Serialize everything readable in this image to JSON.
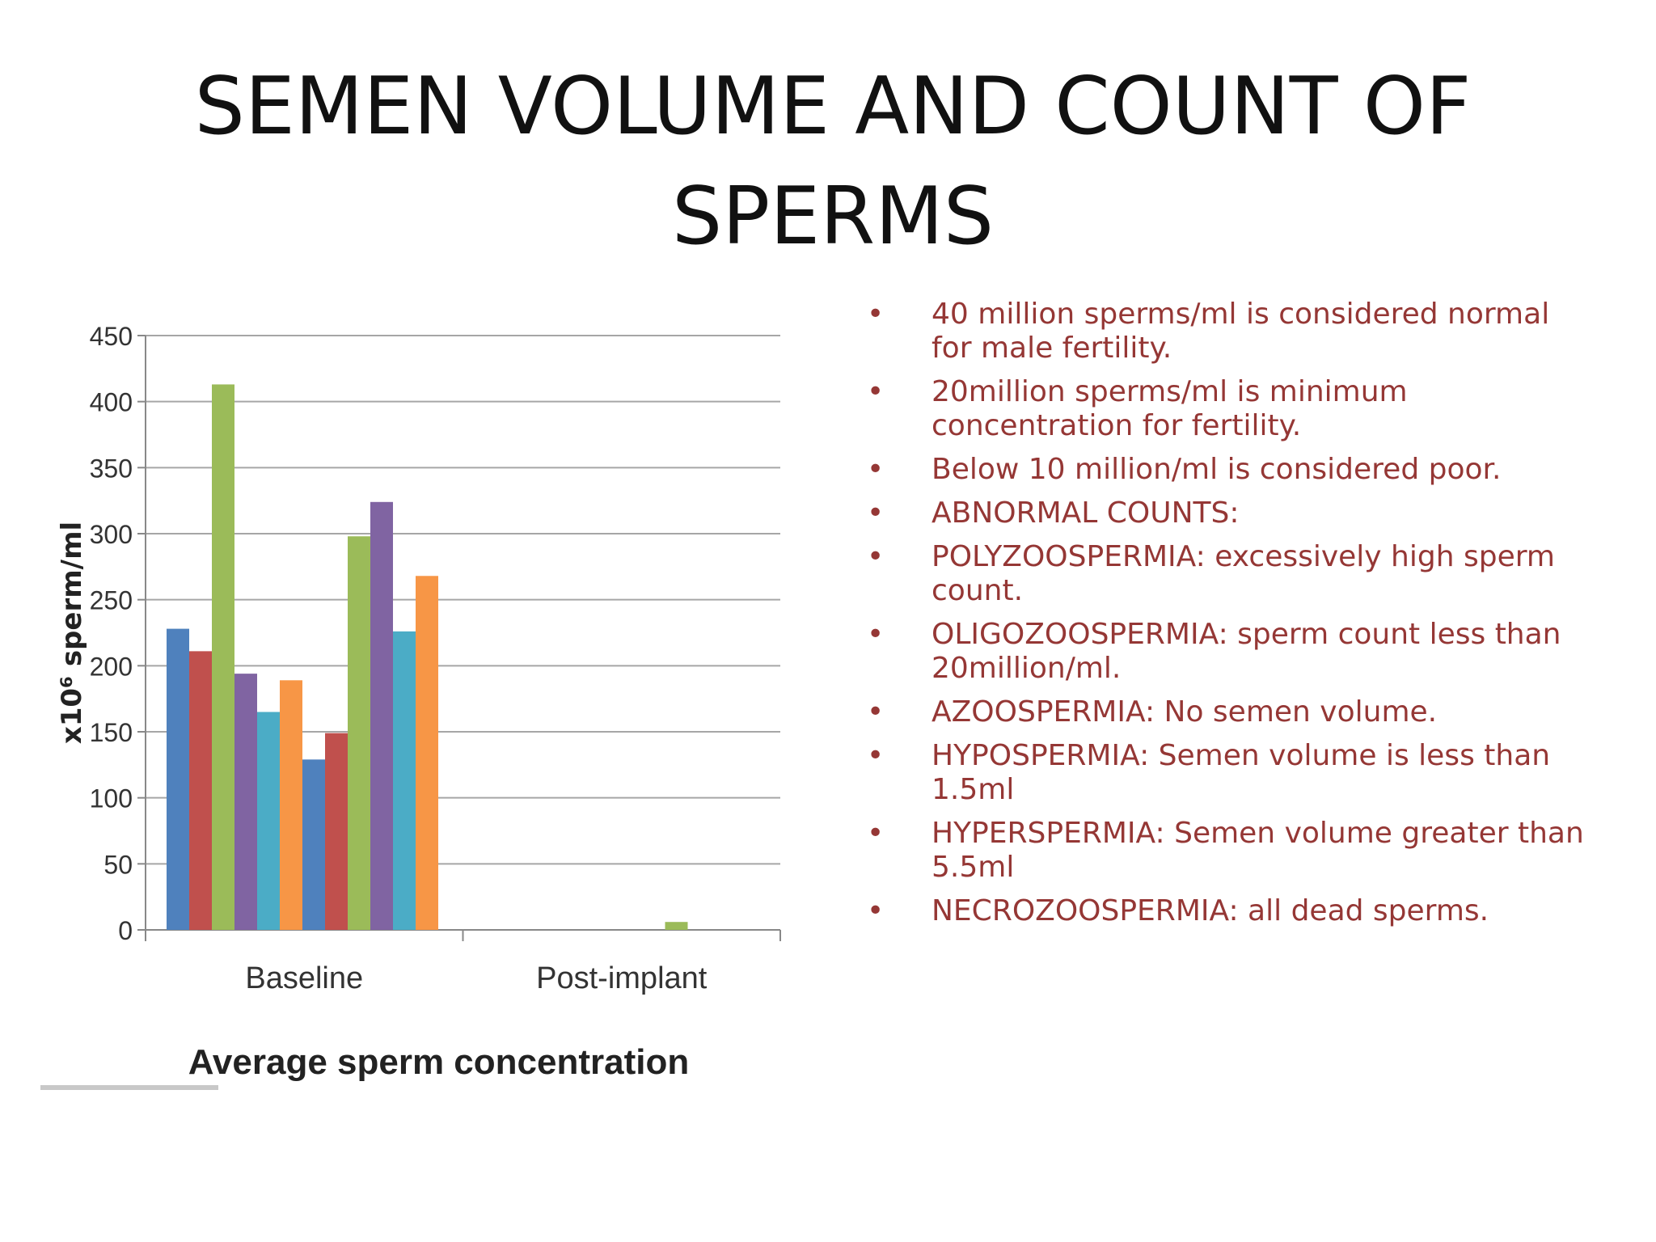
{
  "slide": {
    "title": "SEMEN VOLUME AND COUNT OF SPERMS",
    "bullets": [
      "40 million sperms/ml is considered normal for male fertility.",
      "20million sperms/ml is minimum concentration for fertility.",
      "Below 10 million/ml is considered poor.",
      "ABNORMAL COUNTS:",
      "POLYZOOSPERMIA: excessively high sperm count.",
      "OLIGOZOOSPERMIA: sperm count less than 20million/ml.",
      "AZOOSPERMIA: No semen volume.",
      "HYPOSPERMIA: Semen volume is less than 1.5ml",
      "HYPERSPERMIA: Semen volume greater than 5.5ml",
      "NECROZOOSPERMIA: all dead sperms."
    ],
    "bullet_color": "#953735",
    "bullet_symbol": "•"
  },
  "chart_data": {
    "type": "bar",
    "title": "",
    "xlabel": "Average sperm concentration",
    "ylabel": "x10⁶ sperm/ml",
    "categories": [
      "Baseline",
      "Post-implant"
    ],
    "ylim": [
      0,
      450
    ],
    "yticks": [
      0,
      50,
      100,
      150,
      200,
      250,
      300,
      350,
      400,
      450
    ],
    "grid": true,
    "legend": "none",
    "series": [
      {
        "color": "#4f81bd",
        "values": [
          228,
          0
        ]
      },
      {
        "color": "#c0504d",
        "values": [
          211,
          0
        ]
      },
      {
        "color": "#9bbb59",
        "values": [
          413,
          0
        ]
      },
      {
        "color": "#8064a2",
        "values": [
          194,
          0
        ]
      },
      {
        "color": "#4bacc6",
        "values": [
          165,
          0
        ]
      },
      {
        "color": "#f79646",
        "values": [
          189,
          0
        ]
      },
      {
        "color": "#4f81bd",
        "values": [
          129,
          0
        ]
      },
      {
        "color": "#c0504d",
        "values": [
          149,
          0
        ]
      },
      {
        "color": "#9bbb59",
        "values": [
          298,
          6
        ]
      },
      {
        "color": "#8064a2",
        "values": [
          324,
          0
        ]
      },
      {
        "color": "#4bacc6",
        "values": [
          226,
          0
        ]
      },
      {
        "color": "#f79646",
        "values": [
          268,
          0
        ]
      }
    ]
  }
}
